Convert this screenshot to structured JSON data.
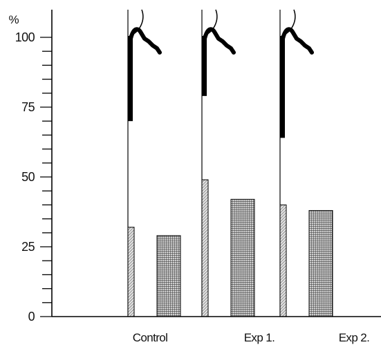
{
  "chart_data": {
    "type": "bar",
    "title": "",
    "xlabel": "",
    "ylabel": "",
    "y_unit": "%",
    "ylim": [
      0,
      100
    ],
    "yticks": [
      0,
      25,
      50,
      75,
      100
    ],
    "yticks_labels": [
      "0",
      "25",
      "50",
      "75",
      "100"
    ],
    "grid": false,
    "legend": "none",
    "categories": [
      "Control",
      "Exp 1.",
      "Exp 2."
    ],
    "series": [
      {
        "values": [
          32,
          49,
          40
        ],
        "pattern": "hatched",
        "color": "#bdbdbd"
      },
      {
        "values": [
          29,
          42,
          38
        ],
        "pattern": "crosshatched",
        "color": "#8a8a8a"
      }
    ],
    "inset_trace": {
      "description": "curved trace shown inside each group",
      "drawn_in": [
        "Control",
        "Exp 1.",
        "Exp 2."
      ],
      "bar_bottom_values": [
        70,
        79,
        64
      ],
      "peak_value": 102,
      "color": "#000000"
    }
  }
}
